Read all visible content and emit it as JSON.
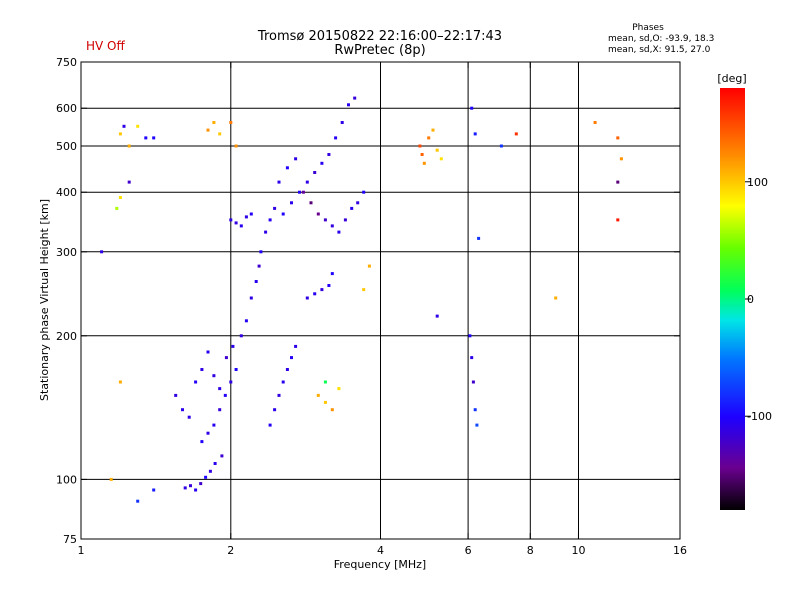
{
  "status": {
    "hv_text": "HV Off",
    "hv_color": "#d00000"
  },
  "header": {
    "title_line1": "Tromsø 20150822 22:16:00–22:17:43",
    "title_line2": "RwPretec (8p)"
  },
  "phase_info": {
    "title": "Phases",
    "line1": "mean, sd,O: -93.9, 18.3",
    "line2": "mean, sd,X:  91.5, 27.0"
  },
  "chart_data": {
    "type": "scatter",
    "title": "Tromsø 20150822 22:16:00–22:17:43",
    "xlabel": "Frequency [MHz]",
    "ylabel": "Stationary phase Virtual Height [km]",
    "x_scale": "log",
    "y_scale": "log",
    "xlim": [
      1,
      16
    ],
    "ylim": [
      75,
      750
    ],
    "x_ticks": [
      1,
      2,
      4,
      6,
      8,
      10,
      16
    ],
    "y_ticks": [
      75,
      100,
      200,
      300,
      400,
      500,
      600,
      750
    ],
    "x_gridlines": [
      2,
      4,
      6,
      8,
      10
    ],
    "y_gridlines": [
      100,
      200,
      300,
      400,
      500,
      600
    ],
    "colorbar": {
      "label": "[deg]",
      "min": -180,
      "max": 180,
      "ticks": [
        -100,
        0,
        100
      ]
    },
    "series": [
      {
        "points": [
          [
            1.62,
            96,
            -110
          ],
          [
            1.66,
            97,
            -115
          ],
          [
            1.7,
            95,
            -105
          ],
          [
            1.74,
            98,
            -120
          ],
          [
            1.78,
            101,
            -100
          ],
          [
            1.82,
            104,
            -112
          ],
          [
            1.86,
            108,
            -108
          ],
          [
            1.92,
            112,
            -118
          ],
          [
            1.75,
            120,
            -102
          ],
          [
            1.8,
            125,
            -110
          ],
          [
            1.85,
            130,
            -106
          ],
          [
            1.9,
            140,
            -114
          ],
          [
            1.95,
            150,
            -104
          ],
          [
            2.0,
            160,
            -110
          ],
          [
            2.05,
            170,
            -100
          ],
          [
            1.96,
            180,
            -120
          ],
          [
            2.02,
            190,
            -108
          ],
          [
            2.1,
            200,
            -112
          ],
          [
            2.15,
            215,
            -104
          ],
          [
            2.2,
            240,
            -110
          ],
          [
            2.25,
            260,
            -106
          ],
          [
            2.28,
            280,
            -118
          ],
          [
            2.3,
            300,
            -102
          ],
          [
            2.35,
            330,
            -110
          ],
          [
            2.4,
            350,
            -106
          ],
          [
            2.45,
            370,
            -112
          ],
          [
            2.55,
            360,
            -100
          ],
          [
            2.65,
            380,
            -108
          ],
          [
            2.75,
            400,
            -104
          ],
          [
            2.85,
            420,
            -110
          ],
          [
            2.95,
            440,
            -116
          ],
          [
            3.05,
            460,
            -106
          ],
          [
            3.15,
            480,
            -112
          ],
          [
            3.25,
            520,
            -104
          ],
          [
            3.35,
            560,
            -110
          ],
          [
            3.45,
            610,
            -106
          ],
          [
            3.55,
            630,
            -114
          ],
          [
            2.5,
            420,
            -108
          ],
          [
            2.6,
            450,
            -102
          ],
          [
            2.7,
            470,
            -110
          ],
          [
            2.8,
            400,
            -140
          ],
          [
            2.9,
            380,
            -150
          ],
          [
            3.0,
            360,
            -145
          ],
          [
            3.1,
            350,
            -120
          ],
          [
            3.2,
            340,
            -112
          ],
          [
            3.3,
            330,
            -108
          ],
          [
            3.4,
            350,
            -116
          ],
          [
            3.5,
            370,
            -106
          ],
          [
            3.6,
            380,
            -112
          ],
          [
            3.7,
            400,
            -100
          ],
          [
            2.85,
            240,
            -110
          ],
          [
            2.95,
            245,
            -106
          ],
          [
            3.05,
            250,
            -112
          ],
          [
            3.15,
            255,
            -104
          ],
          [
            3.2,
            270,
            -100
          ],
          [
            2.0,
            350,
            -110
          ],
          [
            2.05,
            345,
            -112
          ],
          [
            2.1,
            340,
            -106
          ],
          [
            2.15,
            355,
            -110
          ],
          [
            2.2,
            360,
            -104
          ],
          [
            1.55,
            150,
            -112
          ],
          [
            1.6,
            140,
            -108
          ],
          [
            1.65,
            135,
            -110
          ],
          [
            1.7,
            160,
            -104
          ],
          [
            1.75,
            170,
            -110
          ],
          [
            1.8,
            185,
            -106
          ],
          [
            1.85,
            165,
            -112
          ],
          [
            1.9,
            155,
            -110
          ],
          [
            2.4,
            130,
            -104
          ],
          [
            2.45,
            140,
            -108
          ],
          [
            2.5,
            150,
            -112
          ],
          [
            2.55,
            160,
            -106
          ],
          [
            2.6,
            170,
            -110
          ],
          [
            2.65,
            180,
            -104
          ],
          [
            2.7,
            190,
            -110
          ],
          [
            4.8,
            500,
            150
          ],
          [
            4.85,
            480,
            140
          ],
          [
            4.9,
            460,
            120
          ],
          [
            5.0,
            520,
            130
          ],
          [
            5.1,
            540,
            110
          ],
          [
            5.2,
            490,
            100
          ],
          [
            5.3,
            470,
            90
          ],
          [
            6.1,
            600,
            -100
          ],
          [
            6.2,
            530,
            -90
          ],
          [
            6.3,
            320,
            -80
          ],
          [
            6.05,
            200,
            -100
          ],
          [
            6.1,
            180,
            -110
          ],
          [
            6.15,
            160,
            -120
          ],
          [
            6.2,
            140,
            -80
          ],
          [
            6.25,
            130,
            -70
          ],
          [
            3.0,
            150,
            110
          ],
          [
            3.1,
            145,
            100
          ],
          [
            3.2,
            140,
            120
          ],
          [
            3.3,
            155,
            90
          ],
          [
            3.1,
            160,
            10
          ],
          [
            1.2,
            530,
            100
          ],
          [
            1.25,
            500,
            110
          ],
          [
            1.3,
            550,
            90
          ],
          [
            1.4,
            520,
            -100
          ],
          [
            1.8,
            540,
            120
          ],
          [
            1.85,
            560,
            110
          ],
          [
            1.9,
            530,
            100
          ],
          [
            2.0,
            560,
            130
          ],
          [
            2.05,
            500,
            120
          ],
          [
            1.2,
            160,
            110
          ],
          [
            1.15,
            100,
            110
          ],
          [
            1.3,
            90,
            -80
          ],
          [
            1.4,
            95,
            -90
          ],
          [
            10.8,
            560,
            130
          ],
          [
            12.0,
            520,
            140
          ],
          [
            12.2,
            470,
            120
          ],
          [
            12.0,
            420,
            -150
          ],
          [
            12.0,
            350,
            170
          ],
          [
            7.5,
            530,
            160
          ],
          [
            7.0,
            500,
            -80
          ],
          [
            9.0,
            240,
            110
          ],
          [
            5.2,
            220,
            -110
          ],
          [
            3.8,
            280,
            110
          ],
          [
            3.7,
            250,
            100
          ],
          [
            1.1,
            300,
            -110
          ],
          [
            1.2,
            390,
            90
          ],
          [
            1.25,
            420,
            -120
          ],
          [
            1.18,
            370,
            60
          ],
          [
            1.22,
            550,
            -110
          ],
          [
            1.35,
            520,
            -100
          ]
        ]
      }
    ]
  }
}
